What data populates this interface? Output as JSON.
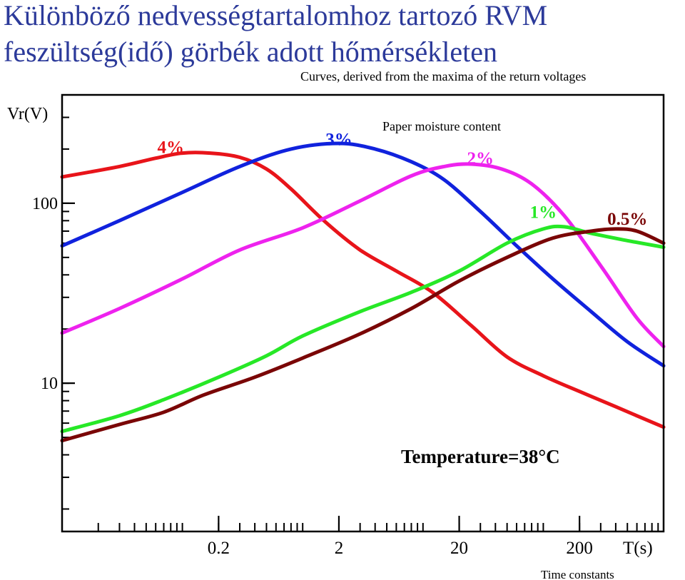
{
  "title_line1": "Különböző nedvességtartalomhoz tartozó RVM",
  "title_line2": "feszültség(idő) görbék adott hőmérsékleten",
  "subtitle": "Curves, derived from the maxima of the return voltages",
  "legend_title": "Paper moisture content",
  "annotation": "Temperature=38°C",
  "chart_data": {
    "type": "line",
    "title": "Különböző nedvességtartalomhoz tartozó RVM feszültség(idő) görbék adott hőmérsékleten",
    "subtitle": "Curves, derived from the maxima of the return voltages",
    "ylabel": "Vr(V)",
    "xlabel": "T(s)",
    "xlabel_note": "Time constants",
    "x_scale": "log",
    "y_scale": "log",
    "xlim": [
      0.01,
      1000
    ],
    "ylim": [
      1.5,
      400
    ],
    "x_ticks": [
      0.2,
      2,
      20,
      200
    ],
    "x_tick_labels": [
      "0.2",
      "2",
      "20",
      "200"
    ],
    "y_ticks": [
      10,
      100
    ],
    "y_tick_labels": [
      "10",
      "100"
    ],
    "grid": false,
    "annotations": [
      "Paper moisture content",
      "Temperature=38°C"
    ],
    "series": [
      {
        "name": "4%",
        "color": "#e8141a",
        "label_x": 0.08,
        "label_y": 190,
        "x": [
          0.01,
          0.03,
          0.06,
          0.1,
          0.17,
          0.3,
          0.5,
          0.8,
          1.5,
          3,
          6,
          12,
          25,
          50,
          100,
          200,
          400,
          1000
        ],
        "y": [
          140,
          160,
          178,
          190,
          190,
          180,
          155,
          120,
          80,
          55,
          42,
          32,
          21,
          14,
          11,
          9,
          7.4,
          5.7
        ]
      },
      {
        "name": "3%",
        "color": "#1022dd",
        "label_x": 2,
        "label_y": 210,
        "x": [
          0.01,
          0.03,
          0.1,
          0.3,
          0.8,
          2,
          4,
          8,
          15,
          30,
          60,
          120,
          250,
          500,
          1000
        ],
        "y": [
          58,
          80,
          115,
          160,
          200,
          215,
          200,
          170,
          135,
          90,
          58,
          38,
          25,
          17,
          12.5
        ]
      },
      {
        "name": "2%",
        "color": "#ee22ee",
        "label_x": 30,
        "label_y": 165,
        "x": [
          0.01,
          0.03,
          0.1,
          0.3,
          1,
          3,
          8,
          15,
          25,
          45,
          80,
          150,
          300,
          600,
          1000
        ],
        "y": [
          19,
          26,
          38,
          55,
          73,
          103,
          142,
          160,
          165,
          155,
          128,
          85,
          45,
          23,
          16
        ]
      },
      {
        "name": "1%",
        "color": "#27e827",
        "label_x": 100,
        "label_y": 83,
        "x": [
          0.01,
          0.03,
          0.07,
          0.2,
          0.5,
          1,
          3,
          8,
          20,
          50,
          100,
          150,
          250,
          500,
          1000
        ],
        "y": [
          5.4,
          6.6,
          8.1,
          10.8,
          14.2,
          18.3,
          25,
          32,
          42,
          60,
          72,
          74,
          68,
          62,
          57
        ]
      },
      {
        "name": "0.5%",
        "color": "#7a0606",
        "label_x": 500,
        "label_y": 76,
        "x": [
          0.01,
          0.03,
          0.07,
          0.15,
          0.4,
          1,
          3,
          8,
          20,
          50,
          120,
          250,
          400,
          600,
          1000
        ],
        "y": [
          4.8,
          5.9,
          6.9,
          8.6,
          10.8,
          13.8,
          18.8,
          26,
          37,
          50,
          64,
          70,
          72,
          70,
          60
        ]
      }
    ]
  }
}
